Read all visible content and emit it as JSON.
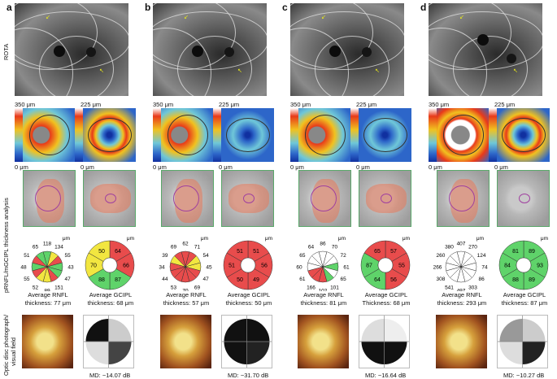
{
  "panels": [
    {
      "letter": "a",
      "rnfl_caption": [
        "Average RNFL",
        "thickness: 77 μm"
      ],
      "gcipl_caption": [
        "Average GCIPL",
        "thickness: 68 μm"
      ],
      "md": "MD: −14.07 dB",
      "rnfl_values": [
        "118",
        "134",
        "55",
        "43",
        "47",
        "151",
        "89",
        "52",
        "55",
        "48",
        "51",
        "65"
      ],
      "gcipl_values": [
        "64",
        "66",
        "87",
        "88",
        "70",
        "50",
        "47"
      ]
    },
    {
      "letter": "b",
      "rnfl_caption": [
        "Average RNFL",
        "thickness: 57 μm"
      ],
      "gcipl_caption": [
        "Average GCIPL",
        "thickness: 50 μm"
      ],
      "md": "MD: −31.70 dB",
      "rnfl_values": [
        "62",
        "71",
        "54",
        "45",
        "47",
        "69",
        "70",
        "53",
        "44",
        "34",
        "39",
        "69"
      ],
      "gcipl_values": [
        "51",
        "56",
        "49",
        "50",
        "51",
        "51",
        "50"
      ]
    },
    {
      "letter": "c",
      "rnfl_caption": [
        "Average RNFL",
        "thickness: 81 μm"
      ],
      "gcipl_caption": [
        "Average GCIPL",
        "Thickness: 68 μm"
      ],
      "md": "MD: −16.64 dB",
      "rnfl_values": [
        "86",
        "70",
        "72",
        "61",
        "65",
        "101",
        "102",
        "166",
        "61",
        "60",
        "65",
        "64"
      ],
      "gcipl_values": [
        "57",
        "55",
        "56",
        "64",
        "87",
        "65",
        "57"
      ]
    },
    {
      "letter": "d",
      "rnfl_caption": [
        "Average RNFL",
        "thickness: 293 μm"
      ],
      "gcipl_caption": [
        "Average GCIPL",
        "thickness: 87 μm"
      ],
      "md": "MD: −10.27 dB",
      "rnfl_values": [
        "407",
        "270",
        "124",
        "74",
        "86",
        "303",
        "497",
        "541",
        "308",
        "266",
        "260",
        "380"
      ],
      "gcipl_values": [
        "89",
        "93",
        "89",
        "88",
        "84",
        "81",
        "89"
      ]
    }
  ],
  "labels": {
    "rota": "ROTA",
    "thickness": "pRNFL/mGCIPL thickness analysis",
    "optic": "Optic disc photograph/",
    "optic2": "visual field",
    "scale_rnfl": "350 μm",
    "scale_gcipl": "225 μm",
    "zero": "0 μm",
    "unit": "μm"
  },
  "colors": {
    "red": "#e84c4c",
    "yellow": "#f2e640",
    "green": "#5fd36a",
    "white": "#ffffff"
  },
  "wheel_colors": [
    [
      "green",
      "yellow",
      "red",
      "green",
      "green",
      "red",
      "yellow",
      "yellow",
      "red",
      "green",
      "red",
      "green"
    ],
    [
      "red",
      "red",
      "yellow",
      "yellow",
      "red",
      "red",
      "red",
      "red",
      "red",
      "red",
      "yellow",
      "red"
    ],
    [
      "white",
      "white",
      "white",
      "green",
      "white",
      "green",
      "red",
      "red",
      "red",
      "white",
      "white",
      "white"
    ],
    [
      "white",
      "white",
      "white",
      "white",
      "white",
      "white",
      "white",
      "white",
      "white",
      "white",
      "white",
      "white"
    ]
  ],
  "gcipl_wheel_colors": [
    [
      "red",
      "red",
      "green",
      "green",
      "yellow",
      "yellow",
      "red"
    ],
    [
      "red",
      "red",
      "red",
      "red",
      "red",
      "red",
      "red"
    ],
    [
      "red",
      "red",
      "red",
      "green",
      "green",
      "red",
      "red"
    ],
    [
      "green",
      "green",
      "green",
      "green",
      "green",
      "green",
      "green"
    ]
  ]
}
